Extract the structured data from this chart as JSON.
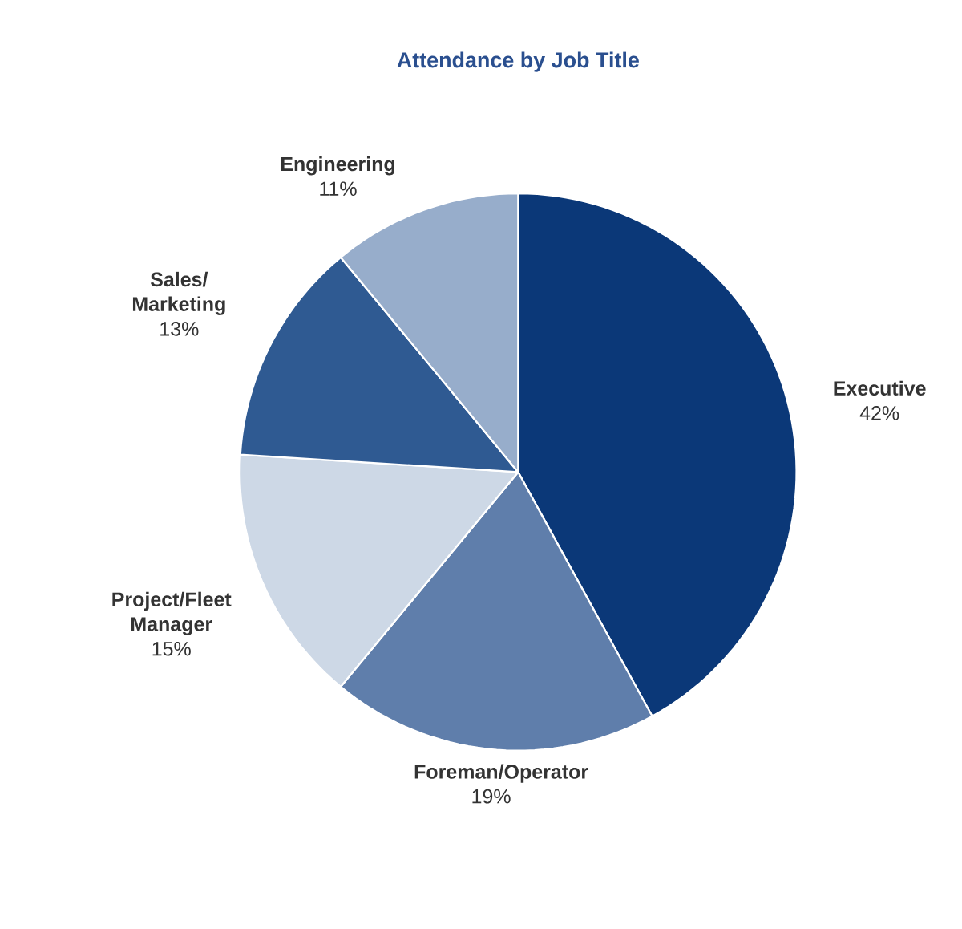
{
  "chart_data": {
    "type": "pie",
    "title": "Attendance by Job Title",
    "categories": [
      "Executive",
      "Foreman/Operator",
      "Project/Fleet Manager",
      "Sales/ Marketing",
      "Engineering"
    ],
    "values": [
      42,
      19,
      15,
      13,
      11
    ],
    "value_labels": [
      "42%",
      "19%",
      "15%",
      "13%",
      "11%"
    ],
    "colors": [
      "#0b3878",
      "#5f7eab",
      "#cdd8e6",
      "#2f5a92",
      "#97adcb"
    ]
  }
}
